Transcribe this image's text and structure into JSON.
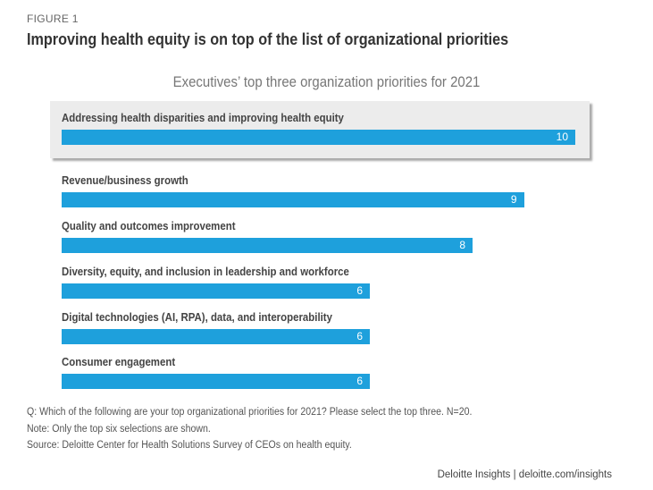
{
  "figure_label": "FIGURE 1",
  "title": "Improving health equity is on top of the list of organizational priorities",
  "chart_data": {
    "type": "bar",
    "orientation": "horizontal",
    "title": "Executives’ top three organization priorities for 2021",
    "categories": [
      "Addressing health disparities and improving health equity",
      "Revenue/business growth",
      "Quality and outcomes improvement",
      "Diversity, equity, and inclusion in leadership and workforce",
      "Digital technologies (AI, RPA), data, and interoperability",
      "Consumer engagement"
    ],
    "values": [
      10,
      9,
      8,
      6,
      6,
      6
    ],
    "highlighted_category": "Addressing health disparities and improving health equity",
    "xlim": [
      0,
      10
    ],
    "bar_color": "#1ea0dc",
    "highlight_color": "#ececec",
    "grid": false
  },
  "notes": [
    "Q: Which of the following are your top organizational priorities for 2021? Please select the top three. N=20.",
    "Note: Only the top six selections are shown.",
    "Source: Deloitte Center for Health Solutions Survey of CEOs on health equity."
  ],
  "credit": "Deloitte Insights | deloitte.com/insights"
}
